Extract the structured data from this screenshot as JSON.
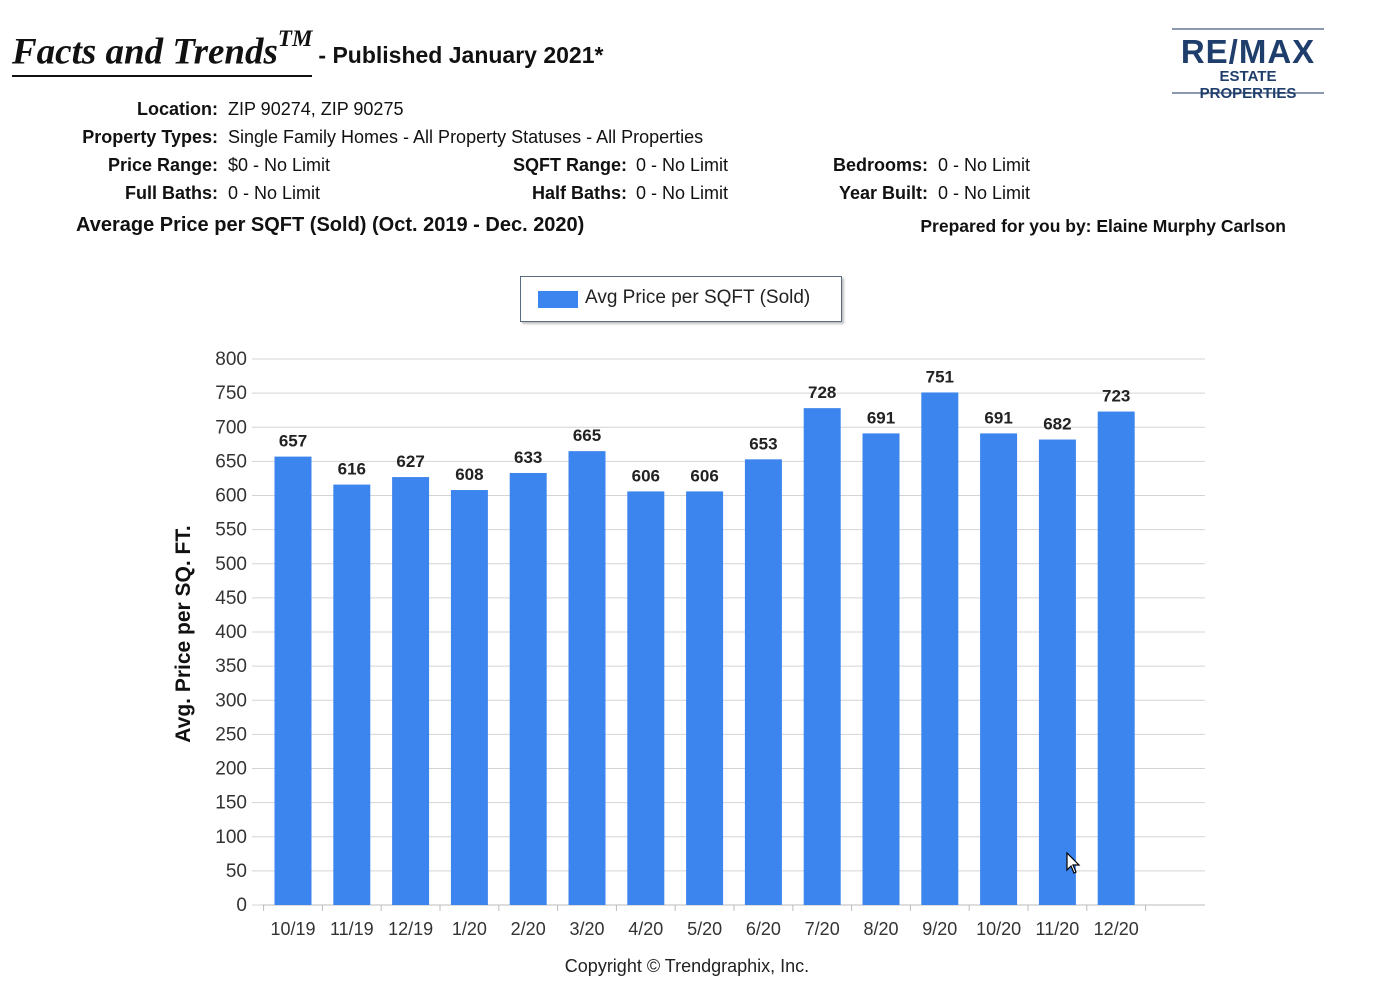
{
  "header": {
    "title": "Facts and Trends",
    "title_sup": "TM",
    "subtitle": "- Published January 2021*",
    "logo_top": "RE/MAX",
    "logo_bottom": "ESTATE PROPERTIES"
  },
  "criteria": {
    "location_label": "Location:",
    "location_value": "ZIP 90274, ZIP 90275",
    "types_label": "Property Types:",
    "types_value": "Single Family Homes - All Property Statuses - All Properties",
    "price_label": "Price Range:",
    "price_value": "$0 - No Limit",
    "sqft_label": "SQFT Range:",
    "sqft_value": "0 - No Limit",
    "bedrooms_label": "Bedrooms:",
    "bedrooms_value": "0 - No Limit",
    "fullbaths_label": "Full Baths:",
    "fullbaths_value": "0 - No Limit",
    "halfbaths_label": "Half Baths:",
    "halfbaths_value": "0 - No Limit",
    "yearbuilt_label": "Year Built:",
    "yearbuilt_value": "0 - No Limit"
  },
  "section_title": "Average Price per SQFT (Sold) (Oct. 2019 - Dec. 2020)",
  "prepared_by": "Prepared for you by: Elaine Murphy Carlson",
  "copyright": "Copyright © Trendgraphix, Inc.",
  "chart_data": {
    "type": "bar",
    "title": "",
    "ylabel": "Avg. Price per SQ. FT.",
    "xlabel": "",
    "ylim": [
      0,
      800
    ],
    "yticks": [
      0,
      50,
      100,
      150,
      200,
      250,
      300,
      350,
      400,
      450,
      500,
      550,
      600,
      650,
      700,
      750,
      800
    ],
    "grid": true,
    "legend_position": "top-center",
    "categories": [
      "10/19",
      "11/19",
      "12/19",
      "1/20",
      "2/20",
      "3/20",
      "4/20",
      "5/20",
      "6/20",
      "7/20",
      "8/20",
      "9/20",
      "10/20",
      "11/20",
      "12/20"
    ],
    "series": [
      {
        "name": "Avg Price per SQFT (Sold)",
        "color": "#3d85ee",
        "values": [
          657,
          616,
          627,
          608,
          633,
          665,
          606,
          606,
          653,
          728,
          691,
          751,
          691,
          682,
          723
        ]
      }
    ]
  }
}
